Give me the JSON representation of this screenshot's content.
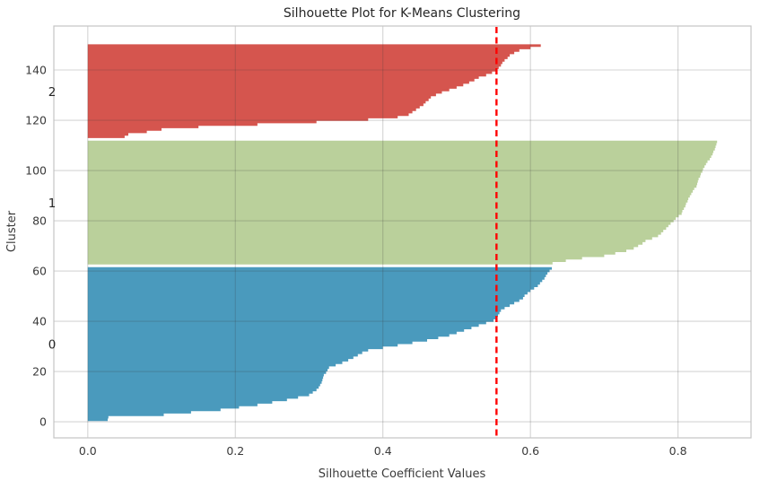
{
  "figure": {
    "title": "Silhouette Plot for K-Means Clustering",
    "xlabel": "Silhouette Coefficient Values",
    "ylabel": "Cluster"
  },
  "chart_data": {
    "type": "area",
    "subtype": "silhouette-plot",
    "title": "Silhouette Plot for K-Means Clustering",
    "xlabel": "Silhouette Coefficient Values",
    "ylabel": "Cluster",
    "grid": true,
    "xlim": [
      -0.046,
      0.899
    ],
    "ylim": [
      -6.4,
      157.5
    ],
    "xticks": [
      {
        "v": 0.0,
        "label": "0.0"
      },
      {
        "v": 0.2,
        "label": "0.2"
      },
      {
        "v": 0.4,
        "label": "0.4"
      },
      {
        "v": 0.6,
        "label": "0.6"
      },
      {
        "v": 0.8,
        "label": "0.8"
      }
    ],
    "yticks": [
      {
        "v": 0,
        "label": "0"
      },
      {
        "v": 20,
        "label": "20"
      },
      {
        "v": 40,
        "label": "40"
      },
      {
        "v": 60,
        "label": "60"
      },
      {
        "v": 80,
        "label": "80"
      },
      {
        "v": 100,
        "label": "100"
      },
      {
        "v": 120,
        "label": "120"
      },
      {
        "v": 140,
        "label": "140"
      }
    ],
    "average_silhouette_line": {
      "x": 0.554,
      "color": "#ff0000",
      "style": "dashed",
      "width": 2.4
    },
    "n_samples": 150,
    "clusters": [
      {
        "name": "0",
        "color": "#4a9abd",
        "y_start": 0.3,
        "y_end": 61.5,
        "label_y": 30.9,
        "n": 62,
        "values": [
          0.027,
          0.028,
          0.103,
          0.14,
          0.18,
          0.205,
          0.23,
          0.25,
          0.27,
          0.285,
          0.3,
          0.305,
          0.31,
          0.313,
          0.315,
          0.317,
          0.318,
          0.319,
          0.32,
          0.323,
          0.325,
          0.327,
          0.336,
          0.345,
          0.353,
          0.36,
          0.366,
          0.372,
          0.38,
          0.4,
          0.42,
          0.44,
          0.46,
          0.475,
          0.49,
          0.5,
          0.51,
          0.52,
          0.53,
          0.54,
          0.55,
          0.554,
          0.556,
          0.558,
          0.56,
          0.565,
          0.572,
          0.578,
          0.585,
          0.59,
          0.592,
          0.596,
          0.6,
          0.605,
          0.61,
          0.613,
          0.616,
          0.619,
          0.621,
          0.623,
          0.626,
          0.629
        ]
      },
      {
        "name": "1",
        "color": "#bad09b",
        "y_start": 62.6,
        "y_end": 111.9,
        "label_y": 87.2,
        "n": 50,
        "values": [
          0.63,
          0.648,
          0.67,
          0.7,
          0.715,
          0.73,
          0.74,
          0.746,
          0.752,
          0.756,
          0.765,
          0.773,
          0.777,
          0.78,
          0.784,
          0.787,
          0.79,
          0.794,
          0.797,
          0.801,
          0.805,
          0.806,
          0.808,
          0.81,
          0.811,
          0.813,
          0.814,
          0.816,
          0.818,
          0.82,
          0.822,
          0.825,
          0.826,
          0.827,
          0.828,
          0.83,
          0.831,
          0.833,
          0.834,
          0.836,
          0.838,
          0.84,
          0.843,
          0.845,
          0.847,
          0.848,
          0.85,
          0.851,
          0.852,
          0.853
        ]
      },
      {
        "name": "2",
        "color": "#d5554e",
        "y_start": 112.9,
        "y_end": 150.2,
        "label_y": 131.5,
        "n": 38,
        "values": [
          0.05,
          0.055,
          0.08,
          0.1,
          0.15,
          0.23,
          0.31,
          0.38,
          0.42,
          0.435,
          0.44,
          0.445,
          0.45,
          0.455,
          0.458,
          0.462,
          0.465,
          0.472,
          0.48,
          0.49,
          0.5,
          0.509,
          0.517,
          0.524,
          0.53,
          0.54,
          0.548,
          0.554,
          0.557,
          0.56,
          0.562,
          0.565,
          0.569,
          0.572,
          0.578,
          0.585,
          0.6,
          0.614
        ]
      }
    ],
    "style": {
      "grid_color": "rgba(60,60,60,0.22)",
      "spine_color": "#c4c4c4",
      "plot_bg": "#ffffff"
    }
  }
}
